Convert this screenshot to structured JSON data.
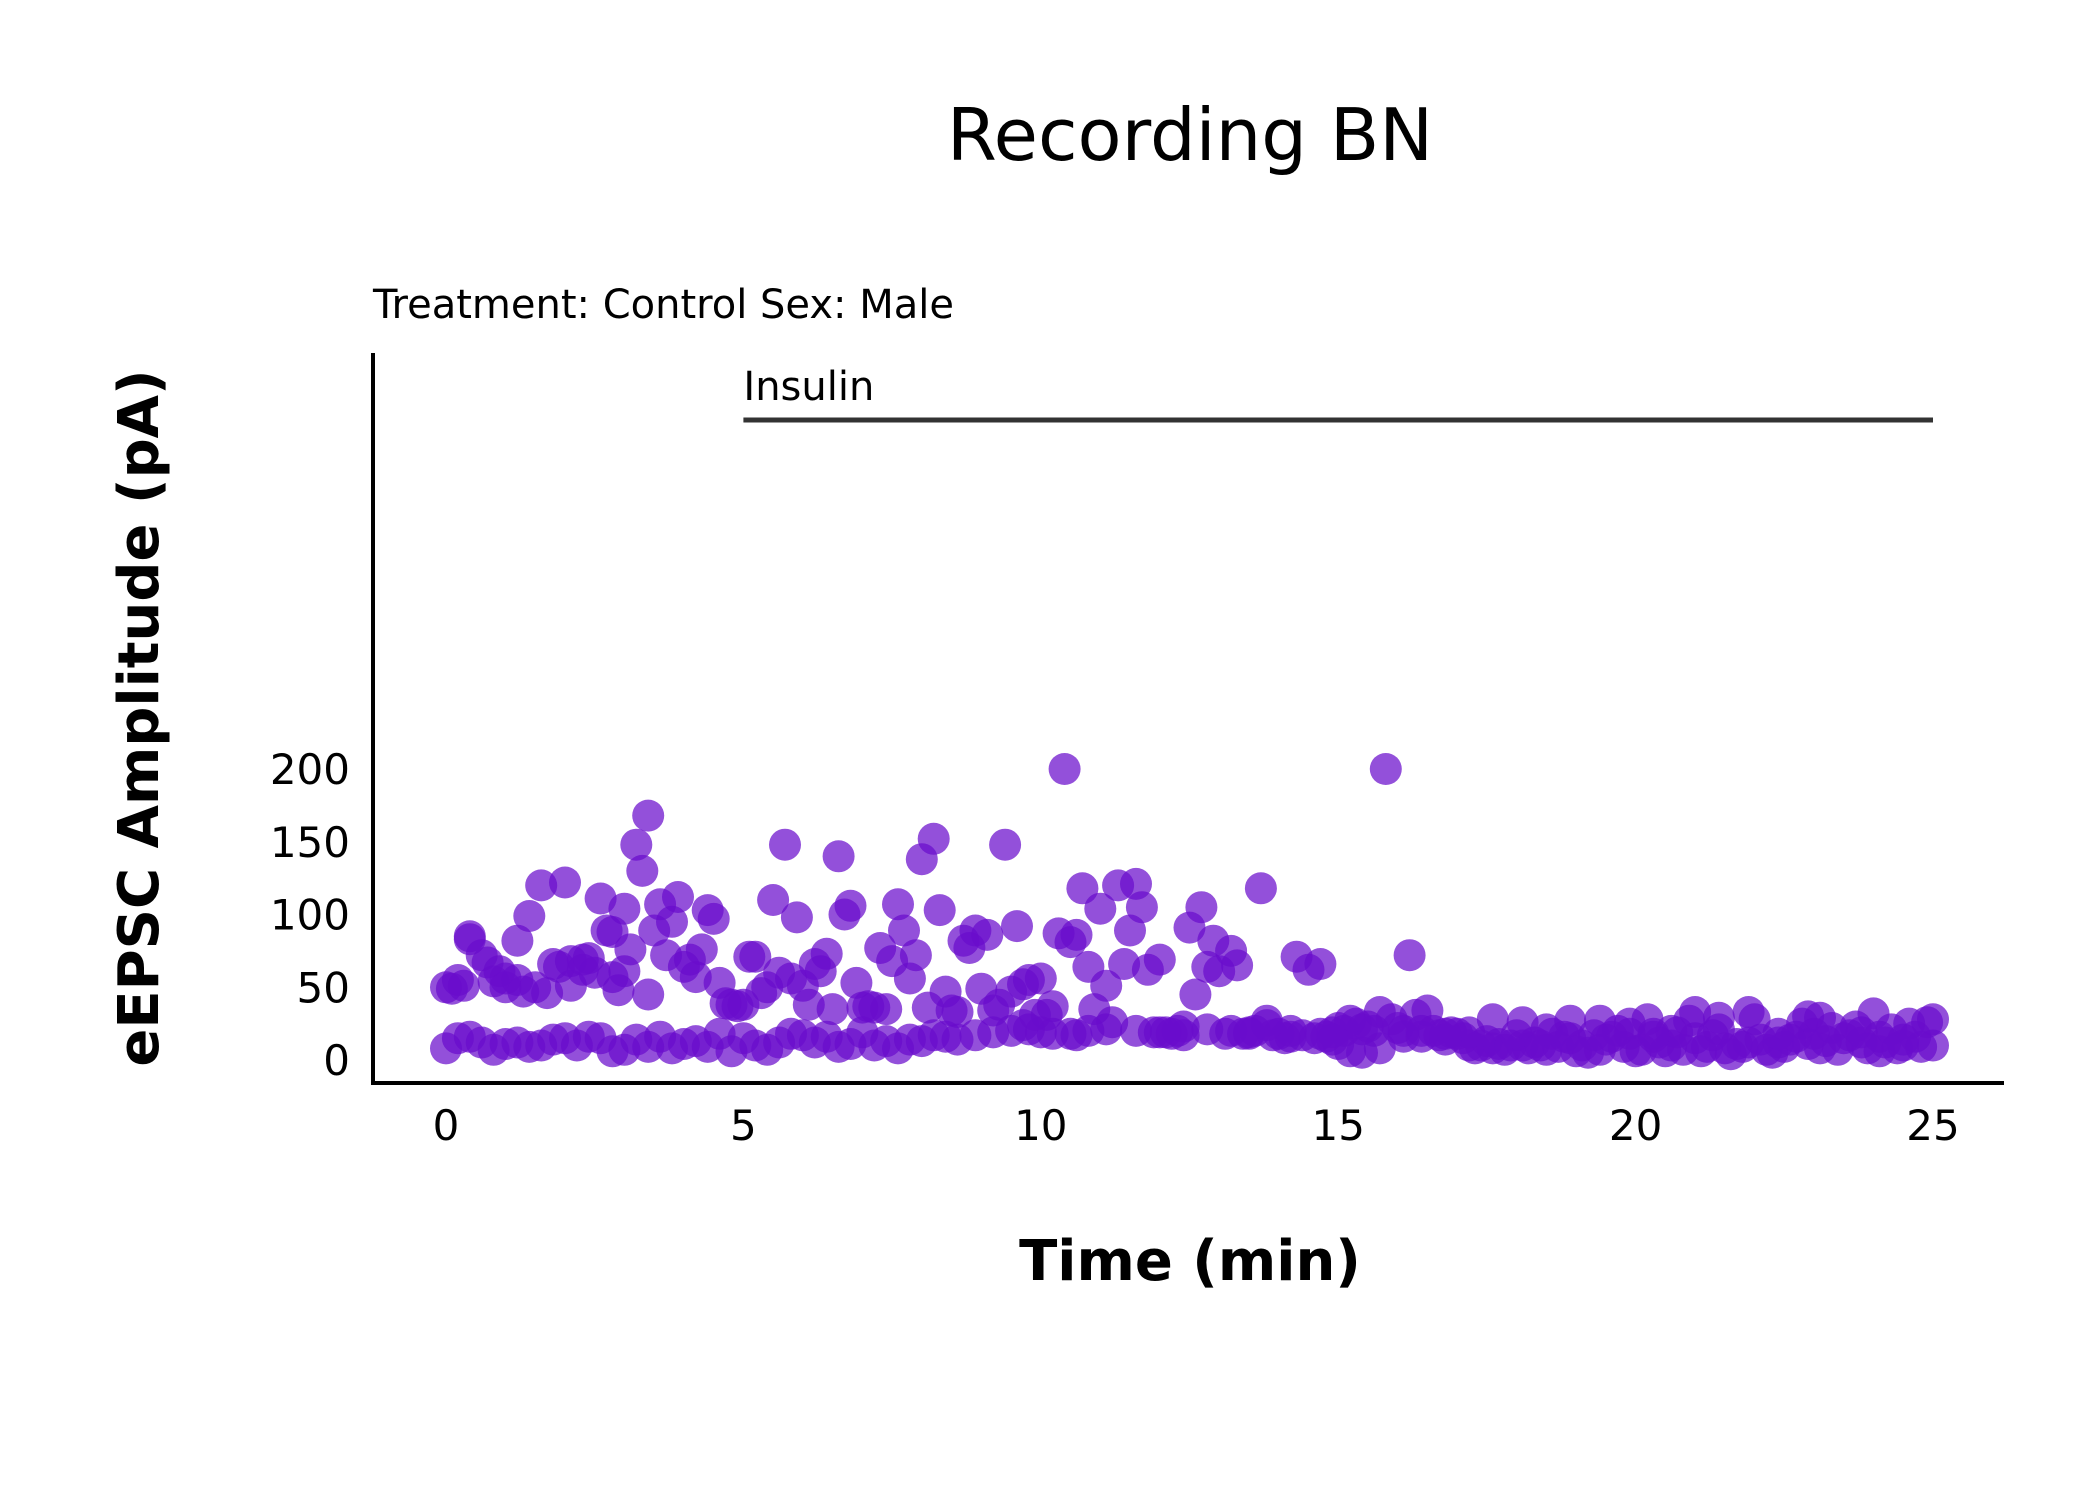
{
  "colors": {
    "point": "#6a0dcc",
    "axis": "#000000",
    "annotation_bar": "#333333",
    "background": "#ffffff"
  },
  "chart_data": {
    "type": "scatter",
    "title": "Recording BN",
    "subtitle": "Treatment: Control  Sex: Male",
    "xlabel": "Time (min)",
    "ylabel": "eEPSC Amplitude (pA)",
    "xlim": [
      -1.2,
      26.2
    ],
    "ylim": [
      -4,
      250
    ],
    "xticks": [
      0,
      5,
      10,
      15,
      20,
      25
    ],
    "yticks": [
      0,
      50,
      100,
      150,
      200
    ],
    "grid": false,
    "legend": "none",
    "annotation": {
      "label": "Insulin",
      "x_start": 5,
      "x_end": 25,
      "y": 238
    },
    "points": [
      [
        0.0,
        50
      ],
      [
        0.1,
        49
      ],
      [
        0.2,
        55
      ],
      [
        0.3,
        51
      ],
      [
        0.4,
        83
      ],
      [
        0.4,
        85
      ],
      [
        0.6,
        72
      ],
      [
        0.7,
        67
      ],
      [
        0.8,
        54
      ],
      [
        0.9,
        61
      ],
      [
        1.0,
        56
      ],
      [
        1.0,
        50
      ],
      [
        1.2,
        82
      ],
      [
        1.2,
        55
      ],
      [
        1.3,
        47
      ],
      [
        1.4,
        99
      ],
      [
        1.5,
        50
      ],
      [
        1.6,
        120
      ],
      [
        1.7,
        46
      ],
      [
        1.8,
        66
      ],
      [
        1.9,
        64
      ],
      [
        2.0,
        122
      ],
      [
        2.1,
        51
      ],
      [
        2.1,
        68
      ],
      [
        2.3,
        62
      ],
      [
        2.3,
        69
      ],
      [
        2.4,
        70
      ],
      [
        2.5,
        60
      ],
      [
        2.6,
        111
      ],
      [
        2.7,
        89
      ],
      [
        2.8,
        57
      ],
      [
        2.8,
        88
      ],
      [
        2.9,
        48
      ],
      [
        3.0,
        104
      ],
      [
        3.0,
        61
      ],
      [
        3.1,
        76
      ],
      [
        3.2,
        148
      ],
      [
        3.3,
        130
      ],
      [
        3.4,
        45
      ],
      [
        3.4,
        168
      ],
      [
        3.5,
        89
      ],
      [
        3.6,
        107
      ],
      [
        3.7,
        72
      ],
      [
        3.8,
        95
      ],
      [
        3.9,
        112
      ],
      [
        4.0,
        64
      ],
      [
        4.1,
        69
      ],
      [
        4.2,
        57
      ],
      [
        4.3,
        76
      ],
      [
        4.4,
        103
      ],
      [
        4.5,
        97
      ],
      [
        4.6,
        53
      ],
      [
        4.7,
        39
      ],
      [
        4.8,
        38
      ],
      [
        4.9,
        37
      ],
      [
        5.0,
        38
      ],
      [
        5.1,
        71
      ],
      [
        5.2,
        71
      ],
      [
        5.3,
        46
      ],
      [
        5.4,
        50
      ],
      [
        5.5,
        110
      ],
      [
        5.6,
        60
      ],
      [
        5.7,
        148
      ],
      [
        5.8,
        56
      ],
      [
        5.9,
        98
      ],
      [
        6.0,
        51
      ],
      [
        6.1,
        38
      ],
      [
        6.2,
        66
      ],
      [
        6.3,
        61
      ],
      [
        6.4,
        73
      ],
      [
        6.5,
        35
      ],
      [
        6.6,
        140
      ],
      [
        6.7,
        100
      ],
      [
        6.8,
        106
      ],
      [
        6.9,
        53
      ],
      [
        7.0,
        36
      ],
      [
        7.1,
        37
      ],
      [
        7.2,
        36
      ],
      [
        7.3,
        77
      ],
      [
        7.4,
        35
      ],
      [
        7.5,
        68
      ],
      [
        7.6,
        107
      ],
      [
        7.7,
        89
      ],
      [
        7.8,
        56
      ],
      [
        7.9,
        72
      ],
      [
        8.0,
        138
      ],
      [
        8.1,
        36
      ],
      [
        8.2,
        152
      ],
      [
        8.3,
        103
      ],
      [
        8.4,
        47
      ],
      [
        8.5,
        34
      ],
      [
        8.6,
        33
      ],
      [
        8.7,
        82
      ],
      [
        8.8,
        77
      ],
      [
        8.9,
        89
      ],
      [
        9.0,
        49
      ],
      [
        9.1,
        86
      ],
      [
        9.2,
        34
      ],
      [
        9.3,
        38
      ],
      [
        9.4,
        148
      ],
      [
        9.5,
        47
      ],
      [
        9.6,
        92
      ],
      [
        9.7,
        52
      ],
      [
        9.8,
        55
      ],
      [
        9.9,
        31
      ],
      [
        10.0,
        56
      ],
      [
        10.1,
        31
      ],
      [
        10.2,
        37
      ],
      [
        10.3,
        87
      ],
      [
        10.4,
        200
      ],
      [
        10.5,
        81
      ],
      [
        10.6,
        86
      ],
      [
        10.7,
        118
      ],
      [
        10.8,
        64
      ],
      [
        10.9,
        35
      ],
      [
        11.0,
        104
      ],
      [
        11.1,
        51
      ],
      [
        11.2,
        26
      ],
      [
        11.3,
        120
      ],
      [
        11.4,
        66
      ],
      [
        11.5,
        89
      ],
      [
        11.6,
        121
      ],
      [
        11.7,
        105
      ],
      [
        11.8,
        62
      ],
      [
        11.9,
        19
      ],
      [
        12.0,
        69
      ],
      [
        12.1,
        19
      ],
      [
        12.2,
        18
      ],
      [
        12.3,
        20
      ],
      [
        12.4,
        17
      ],
      [
        12.5,
        91
      ],
      [
        12.6,
        45
      ],
      [
        12.7,
        105
      ],
      [
        12.8,
        64
      ],
      [
        12.9,
        82
      ],
      [
        13.0,
        61
      ],
      [
        13.1,
        18
      ],
      [
        13.2,
        75
      ],
      [
        13.3,
        65
      ],
      [
        13.4,
        18
      ],
      [
        13.5,
        19
      ],
      [
        13.6,
        20
      ],
      [
        13.7,
        118
      ],
      [
        13.8,
        27
      ],
      [
        13.9,
        17
      ],
      [
        14.0,
        18
      ],
      [
        14.1,
        15
      ],
      [
        14.2,
        16
      ],
      [
        14.3,
        71
      ],
      [
        14.4,
        17
      ],
      [
        14.5,
        62
      ],
      [
        14.6,
        15
      ],
      [
        14.7,
        66
      ],
      [
        14.8,
        16
      ],
      [
        14.9,
        19
      ],
      [
        15.0,
        22
      ],
      [
        15.1,
        20
      ],
      [
        15.2,
        27
      ],
      [
        15.3,
        25
      ],
      [
        15.4,
        21
      ],
      [
        15.5,
        23
      ],
      [
        15.6,
        20
      ],
      [
        15.7,
        33
      ],
      [
        15.8,
        200
      ],
      [
        15.9,
        28
      ],
      [
        16.0,
        22
      ],
      [
        16.1,
        20
      ],
      [
        16.2,
        72
      ],
      [
        16.3,
        31
      ],
      [
        16.4,
        20
      ],
      [
        16.5,
        34
      ],
      [
        16.6,
        20
      ],
      [
        16.7,
        17
      ],
      [
        16.8,
        18
      ],
      [
        16.9,
        19
      ],
      [
        17.0,
        18
      ],
      [
        17.1,
        15
      ],
      [
        17.2,
        10
      ],
      [
        17.3,
        8
      ],
      [
        17.4,
        10
      ],
      [
        17.5,
        13
      ],
      [
        17.6,
        8
      ],
      [
        17.7,
        11
      ],
      [
        17.8,
        7
      ],
      [
        17.9,
        10
      ],
      [
        18.0,
        17
      ],
      [
        18.1,
        10
      ],
      [
        18.2,
        8
      ],
      [
        18.3,
        12
      ],
      [
        18.4,
        10
      ],
      [
        18.5,
        7
      ],
      [
        18.6,
        18
      ],
      [
        18.7,
        9
      ],
      [
        18.8,
        16
      ],
      [
        18.9,
        15
      ],
      [
        19.0,
        6
      ],
      [
        19.1,
        10
      ],
      [
        19.2,
        5
      ],
      [
        19.3,
        17
      ],
      [
        19.4,
        7
      ],
      [
        19.5,
        14
      ],
      [
        19.6,
        16
      ],
      [
        19.7,
        20
      ],
      [
        19.8,
        9
      ],
      [
        19.9,
        18
      ],
      [
        20.0,
        6
      ],
      [
        20.1,
        7
      ],
      [
        20.2,
        28
      ],
      [
        20.3,
        18
      ],
      [
        20.4,
        12
      ],
      [
        20.5,
        6
      ],
      [
        20.6,
        10
      ],
      [
        20.7,
        19
      ],
      [
        20.8,
        7
      ],
      [
        20.9,
        27
      ],
      [
        21.0,
        15
      ],
      [
        21.1,
        6
      ],
      [
        21.2,
        9
      ],
      [
        21.3,
        17
      ],
      [
        21.4,
        21
      ],
      [
        21.5,
        8
      ],
      [
        21.6,
        4
      ],
      [
        21.7,
        11
      ],
      [
        21.8,
        9
      ],
      [
        21.9,
        12
      ],
      [
        22.0,
        28
      ],
      [
        22.1,
        14
      ],
      [
        22.2,
        7
      ],
      [
        22.3,
        5
      ],
      [
        22.4,
        12
      ],
      [
        22.5,
        9
      ],
      [
        22.6,
        14
      ],
      [
        22.7,
        16
      ],
      [
        22.8,
        25
      ],
      [
        22.9,
        11
      ],
      [
        23.0,
        18
      ],
      [
        23.1,
        8
      ],
      [
        23.2,
        13
      ],
      [
        23.3,
        22
      ],
      [
        23.4,
        7
      ],
      [
        23.5,
        15
      ],
      [
        23.6,
        17
      ],
      [
        23.7,
        23
      ],
      [
        23.8,
        12
      ],
      [
        23.9,
        8
      ],
      [
        24.0,
        32
      ],
      [
        24.1,
        6
      ],
      [
        24.2,
        12
      ],
      [
        24.3,
        21
      ],
      [
        24.4,
        8
      ],
      [
        24.5,
        10
      ],
      [
        24.6,
        25
      ],
      [
        24.7,
        16
      ],
      [
        24.8,
        9
      ],
      [
        24.9,
        26
      ],
      [
        25.0,
        10
      ],
      [
        25.0,
        28
      ],
      [
        24.5,
        14
      ],
      [
        24.1,
        16
      ],
      [
        23.8,
        19
      ],
      [
        23.1,
        29
      ],
      [
        22.9,
        30
      ],
      [
        22.4,
        18
      ],
      [
        21.9,
        33
      ],
      [
        21.4,
        29
      ],
      [
        21.0,
        33
      ],
      [
        20.6,
        20
      ],
      [
        20.3,
        16
      ],
      [
        19.9,
        25
      ],
      [
        19.4,
        27
      ],
      [
        18.9,
        27
      ],
      [
        18.5,
        21
      ],
      [
        18.1,
        26
      ],
      [
        17.6,
        28
      ],
      [
        17.2,
        19
      ],
      [
        16.8,
        14
      ],
      [
        16.4,
        16
      ],
      [
        16.1,
        16
      ],
      [
        15.7,
        8
      ],
      [
        15.4,
        5
      ],
      [
        15.2,
        6
      ],
      [
        15.0,
        11
      ],
      [
        14.9,
        14
      ],
      [
        14.7,
        18
      ],
      [
        14.2,
        20
      ],
      [
        13.8,
        24
      ],
      [
        13.5,
        18
      ],
      [
        13.2,
        20
      ],
      [
        12.8,
        21
      ],
      [
        12.4,
        23
      ],
      [
        12.0,
        19
      ],
      [
        11.6,
        20
      ],
      [
        11.1,
        21
      ],
      [
        10.8,
        20
      ],
      [
        10.6,
        17
      ],
      [
        10.5,
        18
      ],
      [
        10.2,
        18
      ],
      [
        10.0,
        19
      ],
      [
        9.8,
        21
      ],
      [
        9.7,
        24
      ],
      [
        9.5,
        20
      ],
      [
        9.2,
        19
      ],
      [
        8.9,
        17
      ],
      [
        8.6,
        14
      ],
      [
        8.4,
        16
      ],
      [
        8.2,
        17
      ],
      [
        8.0,
        13
      ],
      [
        7.8,
        14
      ],
      [
        7.6,
        8
      ],
      [
        7.4,
        13
      ],
      [
        7.2,
        10
      ],
      [
        7.0,
        19
      ],
      [
        6.8,
        11
      ],
      [
        6.6,
        9
      ],
      [
        6.4,
        16
      ],
      [
        6.2,
        12
      ],
      [
        6.0,
        17
      ],
      [
        5.8,
        18
      ],
      [
        5.6,
        12
      ],
      [
        5.4,
        7
      ],
      [
        5.2,
        10
      ],
      [
        5.0,
        15
      ],
      [
        4.8,
        6
      ],
      [
        4.6,
        18
      ],
      [
        4.4,
        9
      ],
      [
        4.2,
        13
      ],
      [
        4.0,
        11
      ],
      [
        3.8,
        8
      ],
      [
        3.6,
        16
      ],
      [
        3.4,
        9
      ],
      [
        3.2,
        14
      ],
      [
        3.0,
        7
      ],
      [
        2.8,
        6
      ],
      [
        2.6,
        15
      ],
      [
        2.4,
        16
      ],
      [
        2.2,
        10
      ],
      [
        2.0,
        15
      ],
      [
        1.8,
        14
      ],
      [
        1.6,
        10
      ],
      [
        1.4,
        9
      ],
      [
        1.2,
        12
      ],
      [
        1.0,
        11
      ],
      [
        0.8,
        7
      ],
      [
        0.6,
        12
      ],
      [
        0.4,
        16
      ],
      [
        0.2,
        15
      ],
      [
        0.0,
        8
      ]
    ]
  }
}
